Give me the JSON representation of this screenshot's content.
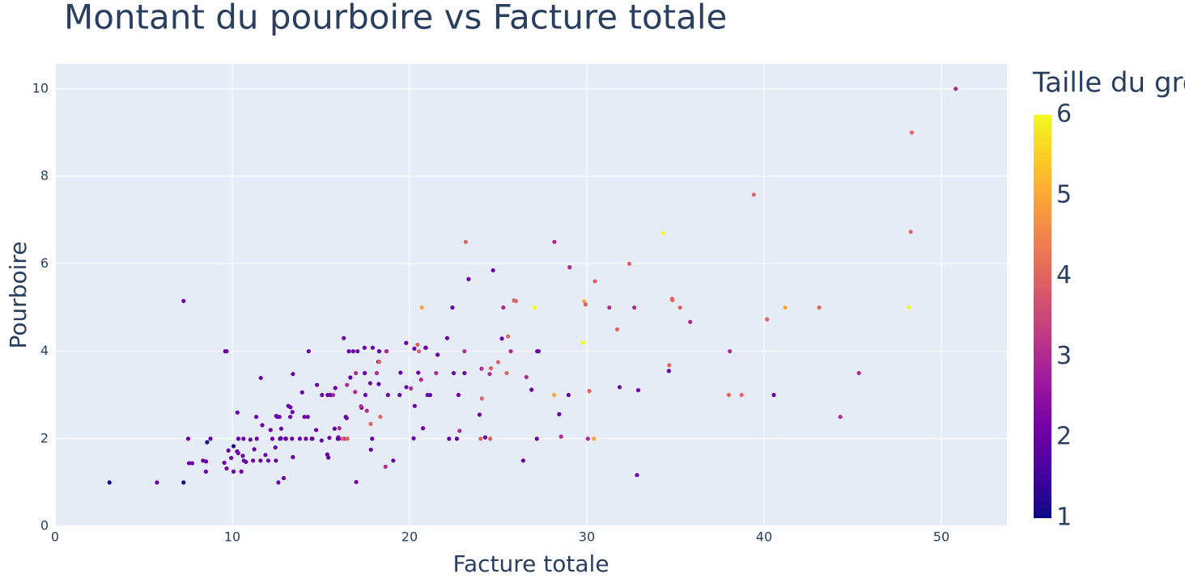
{
  "chart_data": {
    "type": "scatter",
    "title": "Montant du pourboire vs Facture totale",
    "x_label": "Facture totale",
    "y_label": "Pourboire",
    "color_label": "Taille du groupe",
    "xlim": [
      0,
      53.7
    ],
    "ylim": [
      0,
      10.57
    ],
    "xticks": [
      0,
      10,
      20,
      30,
      40,
      50
    ],
    "yticks": [
      0,
      2,
      4,
      6,
      8,
      10
    ],
    "grid": true,
    "colorlim": [
      1,
      6
    ],
    "colorticks": [
      1,
      2,
      3,
      4,
      5,
      6
    ],
    "colorscale": [
      "#0d0887",
      "#46039f",
      "#7201a8",
      "#9c179e",
      "#bd3786",
      "#d8576b",
      "#ed7953",
      "#fb9f3a",
      "#fdca26",
      "#f0f921"
    ],
    "background": "#e5ecf6",
    "points": [
      [
        50.81,
        10,
        3
      ],
      [
        48.33,
        9,
        4
      ],
      [
        39.42,
        7.58,
        4
      ],
      [
        48.27,
        6.73,
        4
      ],
      [
        34.3,
        6.7,
        6
      ],
      [
        23.17,
        6.5,
        4
      ],
      [
        28.17,
        6.5,
        3
      ],
      [
        32.4,
        6,
        4
      ],
      [
        24.71,
        5.85,
        2
      ],
      [
        29.03,
        5.92,
        3
      ],
      [
        23.33,
        5.65,
        2
      ],
      [
        30.46,
        5.6,
        4
      ],
      [
        7.25,
        5.15,
        2
      ],
      [
        34.81,
        5.2,
        4
      ],
      [
        34.83,
        5.17,
        4
      ],
      [
        29.85,
        5.14,
        5
      ],
      [
        26.0,
        5.15,
        4
      ],
      [
        48.17,
        5,
        6
      ],
      [
        41.19,
        5,
        5
      ],
      [
        43.11,
        5,
        4
      ],
      [
        35.26,
        5,
        4
      ],
      [
        31.27,
        5,
        3
      ],
      [
        32.68,
        5,
        3
      ],
      [
        27.05,
        5,
        6
      ],
      [
        25.29,
        5,
        3
      ],
      [
        22.42,
        5,
        2
      ],
      [
        20.69,
        5,
        5
      ],
      [
        29.93,
        5.07,
        4
      ],
      [
        40.17,
        4.73,
        4
      ],
      [
        35.83,
        4.67,
        3
      ],
      [
        31.71,
        4.5,
        4
      ],
      [
        25.21,
        4.29,
        2
      ],
      [
        25.56,
        4.34,
        4
      ],
      [
        29.8,
        4.2,
        6
      ],
      [
        17.46,
        4.08,
        2
      ],
      [
        20.27,
        4.06,
        2
      ],
      [
        22.12,
        4.3,
        2
      ],
      [
        16.29,
        4.3,
        2
      ],
      [
        9.68,
        4,
        2
      ],
      [
        14.31,
        4,
        2
      ],
      [
        16.82,
        4,
        2
      ],
      [
        17.07,
        4,
        2
      ],
      [
        18.29,
        4,
        2
      ],
      [
        18.69,
        4,
        3
      ],
      [
        20.65,
        3.35,
        3
      ],
      [
        23.1,
        4,
        3
      ],
      [
        25.71,
        4,
        3
      ],
      [
        27.28,
        4,
        2
      ],
      [
        27.2,
        4,
        2
      ],
      [
        38.07,
        4,
        3
      ],
      [
        21.5,
        3.5,
        3
      ],
      [
        20.45,
        4.15,
        4
      ],
      [
        20.9,
        4.08,
        2
      ],
      [
        21.58,
        3.92,
        2
      ],
      [
        34.65,
        3.68,
        4
      ],
      [
        34.63,
        3.55,
        2
      ],
      [
        45.35,
        3.5,
        3
      ],
      [
        31.85,
        3.18,
        2
      ],
      [
        32.83,
        1.17,
        2
      ],
      [
        32.9,
        3.11,
        2
      ],
      [
        40.55,
        3,
        2
      ],
      [
        38.01,
        3,
        4
      ],
      [
        38.73,
        3,
        4
      ],
      [
        28.15,
        3,
        5
      ],
      [
        28.97,
        3,
        2
      ],
      [
        30.06,
        2,
        3
      ],
      [
        30.14,
        3.09,
        4
      ],
      [
        30.4,
        2,
        5
      ],
      [
        27.18,
        2,
        2
      ],
      [
        28.44,
        2.56,
        2
      ],
      [
        28.55,
        2.05,
        3
      ],
      [
        26.41,
        1.5,
        2
      ],
      [
        26.88,
        3.12,
        2
      ],
      [
        24.08,
        2.92,
        4
      ],
      [
        24.52,
        3.48,
        3
      ],
      [
        24.59,
        3.61,
        4
      ],
      [
        24.27,
        2.03,
        2
      ],
      [
        24.55,
        2,
        4
      ],
      [
        23.95,
        2.55,
        2
      ],
      [
        24.06,
        3.6,
        3
      ],
      [
        22.82,
        2.18,
        3
      ],
      [
        23.1,
        3.5,
        2
      ],
      [
        22.76,
        3,
        2
      ],
      [
        22.67,
        2,
        2
      ],
      [
        25.89,
        5.16,
        4
      ],
      [
        25.0,
        3.75,
        4
      ],
      [
        26.59,
        3.41,
        3
      ],
      [
        25.48,
        3.5,
        4
      ],
      [
        44.3,
        2.5,
        3
      ],
      [
        22.49,
        3.5,
        2
      ],
      [
        21.01,
        3,
        2
      ],
      [
        21.16,
        3,
        2
      ],
      [
        20.92,
        4.08,
        2
      ],
      [
        20.76,
        2.24,
        2
      ],
      [
        20.29,
        2.75,
        2
      ],
      [
        20.53,
        4,
        4
      ],
      [
        20.23,
        2.01,
        2
      ],
      [
        19.82,
        3.18,
        2
      ],
      [
        19.81,
        4.19,
        2
      ],
      [
        20.08,
        3.15,
        3
      ],
      [
        20.49,
        3.51,
        2
      ],
      [
        19.44,
        3,
        2
      ],
      [
        19.49,
        3.51,
        2
      ],
      [
        18.78,
        3,
        2
      ],
      [
        19.08,
        1.5,
        2
      ],
      [
        18.35,
        2.5,
        4
      ],
      [
        18.64,
        1.36,
        3
      ],
      [
        18.71,
        4,
        3
      ],
      [
        18.15,
        3.5,
        3
      ],
      [
        18.24,
        3.76,
        2
      ],
      [
        18.26,
        3.25,
        2
      ],
      [
        18.28,
        4,
        2
      ],
      [
        18.29,
        3.76,
        4
      ],
      [
        17.92,
        4.08,
        2
      ],
      [
        17.89,
        2,
        2
      ],
      [
        17.82,
        1.75,
        2
      ],
      [
        17.78,
        3.27,
        2
      ],
      [
        17.81,
        2.34,
        4
      ],
      [
        17.59,
        2.64,
        3
      ],
      [
        17.51,
        3,
        2
      ],
      [
        17.47,
        3.5,
        2
      ],
      [
        17.29,
        2.71,
        2
      ],
      [
        16.97,
        3.5,
        3
      ],
      [
        16.93,
        3.07,
        3
      ],
      [
        16.99,
        1.01,
        2
      ],
      [
        16.66,
        3.4,
        2
      ],
      [
        16.58,
        4,
        2
      ],
      [
        16.45,
        2.47,
        2
      ],
      [
        16.4,
        2.5,
        2
      ],
      [
        16.31,
        2,
        3
      ],
      [
        16.21,
        2,
        4
      ],
      [
        16.04,
        2.24,
        3
      ],
      [
        16.0,
        2,
        2
      ],
      [
        15.98,
        2.03,
        2
      ],
      [
        15.81,
        3.16,
        2
      ],
      [
        15.77,
        2.23,
        2
      ],
      [
        15.69,
        3,
        3
      ],
      [
        15.53,
        3,
        2
      ],
      [
        15.48,
        2.02,
        2
      ],
      [
        15.42,
        1.57,
        2
      ],
      [
        15.38,
        3,
        2
      ],
      [
        15.36,
        1.64,
        2
      ],
      [
        15.06,
        3,
        2
      ],
      [
        15.04,
        1.96,
        2
      ],
      [
        14.78,
        3.23,
        2
      ],
      [
        14.73,
        2.2,
        2
      ],
      [
        14.52,
        2,
        2
      ],
      [
        14.48,
        2,
        2
      ],
      [
        14.26,
        2.5,
        2
      ],
      [
        14.15,
        2,
        2
      ],
      [
        14.07,
        2.5,
        2
      ],
      [
        13.94,
        3.06,
        2
      ],
      [
        13.81,
        2,
        2
      ],
      [
        13.42,
        3.48,
        2
      ],
      [
        13.42,
        1.58,
        2
      ],
      [
        13.39,
        2.61,
        2
      ],
      [
        13.37,
        2,
        2
      ],
      [
        13.28,
        2.72,
        2
      ],
      [
        13.27,
        2.5,
        2
      ],
      [
        13.16,
        2.75,
        2
      ],
      [
        13.03,
        2,
        2
      ],
      [
        13.0,
        2,
        2
      ],
      [
        12.9,
        1.1,
        2
      ],
      [
        12.76,
        2.23,
        2
      ],
      [
        12.74,
        2.01,
        2
      ],
      [
        12.69,
        2,
        2
      ],
      [
        12.66,
        2.5,
        2
      ],
      [
        12.6,
        1,
        2
      ],
      [
        12.54,
        2.5,
        2
      ],
      [
        12.48,
        2.52,
        2
      ],
      [
        12.46,
        1.5,
        2
      ],
      [
        12.43,
        1.8,
        2
      ],
      [
        12.26,
        2,
        2
      ],
      [
        12.16,
        2.2,
        2
      ],
      [
        12.03,
        1.5,
        2
      ],
      [
        11.87,
        1.63,
        2
      ],
      [
        11.69,
        2.31,
        2
      ],
      [
        11.61,
        3.39,
        2
      ],
      [
        11.59,
        1.5,
        2
      ],
      [
        11.38,
        2,
        2
      ],
      [
        11.35,
        2.5,
        2
      ],
      [
        11.24,
        1.76,
        2
      ],
      [
        11.17,
        1.5,
        2
      ],
      [
        11.02,
        1.98,
        2
      ],
      [
        10.77,
        1.47,
        2
      ],
      [
        10.65,
        1.5,
        2
      ],
      [
        10.63,
        2,
        2
      ],
      [
        10.59,
        1.61,
        2
      ],
      [
        10.51,
        1.25,
        2
      ],
      [
        10.34,
        2,
        2
      ],
      [
        10.33,
        1.67,
        2
      ],
      [
        10.29,
        2.6,
        2
      ],
      [
        10.27,
        1.71,
        2
      ],
      [
        10.07,
        1.25,
        2
      ],
      [
        10.07,
        1.83,
        1
      ],
      [
        9.94,
        1.56,
        2
      ],
      [
        9.78,
        1.73,
        2
      ],
      [
        9.68,
        1.32,
        2
      ],
      [
        9.6,
        4,
        2
      ],
      [
        9.55,
        1.45,
        2
      ],
      [
        8.77,
        2,
        2
      ],
      [
        8.58,
        1.92,
        1
      ],
      [
        8.52,
        1.48,
        2
      ],
      [
        8.51,
        1.25,
        2
      ],
      [
        8.35,
        1.5,
        2
      ],
      [
        7.74,
        1.44,
        2
      ],
      [
        7.56,
        1.44,
        2
      ],
      [
        7.51,
        2,
        2
      ],
      [
        7.25,
        1,
        1
      ],
      [
        5.75,
        1,
        2
      ],
      [
        3.07,
        1,
        1
      ],
      [
        17.26,
        2.74,
        3
      ],
      [
        16.49,
        2,
        4
      ],
      [
        16.47,
        3.23,
        3
      ],
      [
        24.01,
        2,
        4
      ],
      [
        22.23,
        2,
        2
      ],
      [
        15.95,
        2,
        2
      ]
    ]
  }
}
